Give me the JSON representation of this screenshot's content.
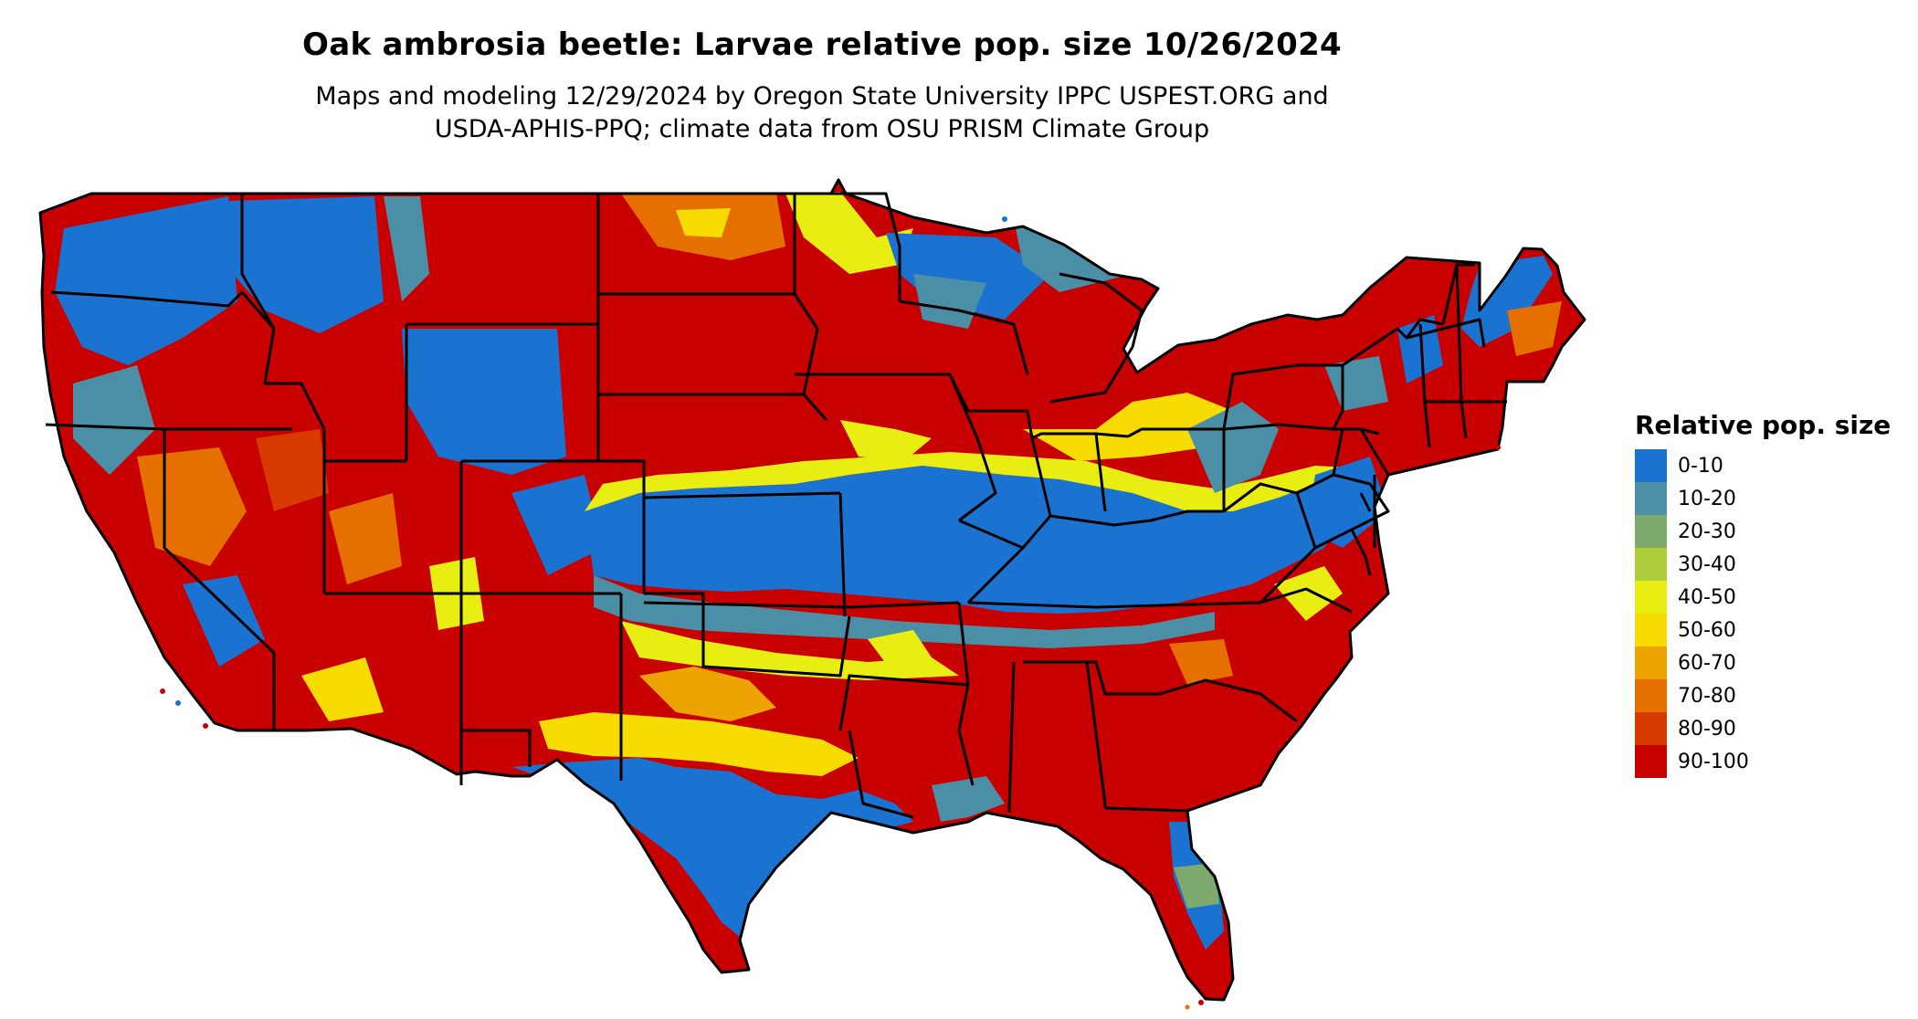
{
  "map": {
    "title": "Oak ambrosia beetle: Larvae relative pop. size 10/26/2024",
    "subtitle_line1": "Maps and modeling 12/29/2024 by Oregon State University IPPC USPEST.ORG and",
    "subtitle_line2": "USDA-APHIS-PPQ; climate data from OSU PRISM Climate Group",
    "region": "Contiguous United States",
    "colors": {
      "boundary": "#000000",
      "background": "#ffffff"
    }
  },
  "legend": {
    "title": "Relative pop. size",
    "items": [
      {
        "label": "0-10",
        "color": "#1a73d0"
      },
      {
        "label": "10-20",
        "color": "#4b8fa6"
      },
      {
        "label": "20-30",
        "color": "#7eaa6e"
      },
      {
        "label": "30-40",
        "color": "#aecf3c"
      },
      {
        "label": "40-50",
        "color": "#e8ee12"
      },
      {
        "label": "50-60",
        "color": "#f6dc00"
      },
      {
        "label": "60-70",
        "color": "#eda400"
      },
      {
        "label": "70-80",
        "color": "#e57000"
      },
      {
        "label": "80-90",
        "color": "#d83a00"
      },
      {
        "label": "90-100",
        "color": "#c90000"
      }
    ]
  }
}
